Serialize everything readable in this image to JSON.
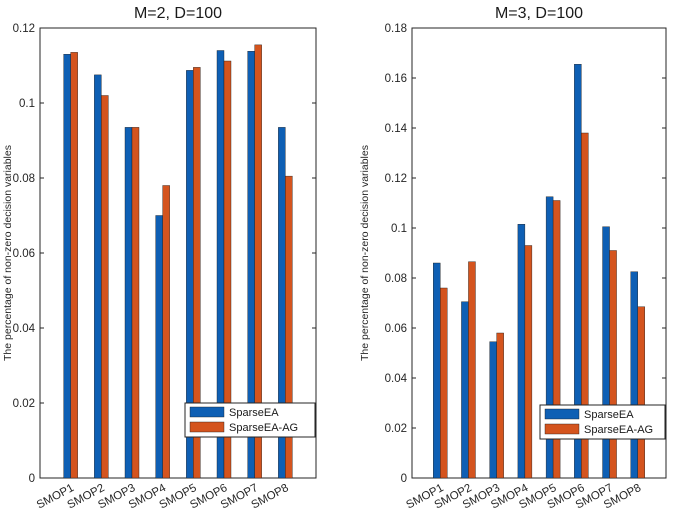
{
  "chart_data": [
    {
      "type": "bar",
      "title": "M=2, D=100",
      "xlabel": "",
      "ylabel": "The percentage of non-zero decision variables",
      "categories": [
        "SMOP1",
        "SMOP2",
        "SMOP3",
        "SMOP4",
        "SMOP5",
        "SMOP6",
        "SMOP7",
        "SMOP8"
      ],
      "ylim": [
        0,
        0.12
      ],
      "yticks": [
        0,
        0.02,
        0.04,
        0.06,
        0.08,
        0.1,
        0.12
      ],
      "ytick_labels": [
        "0",
        "0.02",
        "0.04",
        "0.06",
        "0.08",
        "0.1",
        "0.12"
      ],
      "legend_position": "bottom-right",
      "series": [
        {
          "name": "SparseEA",
          "color": "#0e5fb4",
          "values": [
            0.113,
            0.1075,
            0.0935,
            0.07,
            0.1087,
            0.114,
            0.1138,
            0.0935
          ]
        },
        {
          "name": "SparseEA-AG",
          "color": "#d4541e",
          "values": [
            0.1135,
            0.102,
            0.0935,
            0.078,
            0.1095,
            0.1112,
            0.1155,
            0.0805
          ]
        }
      ]
    },
    {
      "type": "bar",
      "title": "M=3, D=100",
      "xlabel": "",
      "ylabel": "The percentage of non-zero decision variables",
      "categories": [
        "SMOP1",
        "SMOP2",
        "SMOP3",
        "SMOP4",
        "SMOP5",
        "SMOP6",
        "SMOP7",
        "SMOP8"
      ],
      "ylim": [
        0,
        0.18
      ],
      "yticks": [
        0,
        0.02,
        0.04,
        0.06,
        0.08,
        0.1,
        0.12,
        0.14,
        0.16,
        0.18
      ],
      "ytick_labels": [
        "0",
        "0.02",
        "0.04",
        "0.06",
        "0.08",
        "0.1",
        "0.12",
        "0.14",
        "0.16",
        "0.18"
      ],
      "legend_position": "bottom-right",
      "series": [
        {
          "name": "SparseEA",
          "color": "#0e5fb4",
          "values": [
            0.086,
            0.0705,
            0.0545,
            0.1015,
            0.1125,
            0.1655,
            0.1005,
            0.0825
          ]
        },
        {
          "name": "SparseEA-AG",
          "color": "#d4541e",
          "values": [
            0.076,
            0.0865,
            0.058,
            0.093,
            0.111,
            0.138,
            0.091,
            0.0685
          ]
        }
      ]
    }
  ]
}
